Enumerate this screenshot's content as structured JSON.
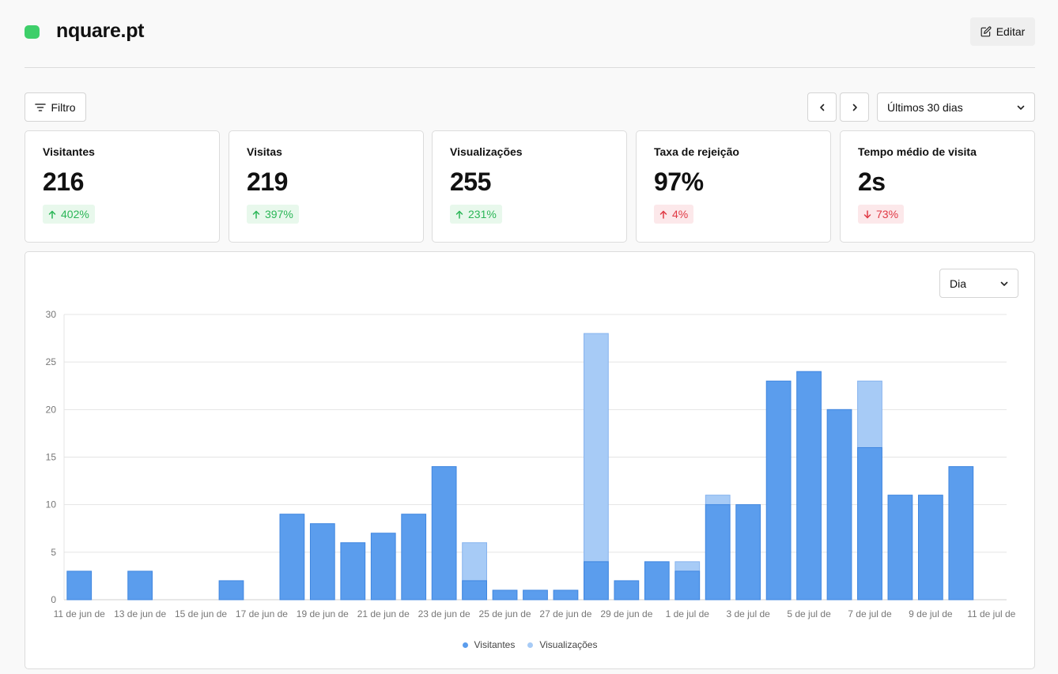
{
  "header": {
    "site": "nquare.pt",
    "edit_label": "Editar"
  },
  "toolbar": {
    "filter_label": "Filtro",
    "range_label": "Últimos 30 dias"
  },
  "stats": [
    {
      "label": "Visitantes",
      "value": "216",
      "delta": "402%",
      "direction": "up",
      "tone": "good"
    },
    {
      "label": "Visitas",
      "value": "219",
      "delta": "397%",
      "direction": "up",
      "tone": "good"
    },
    {
      "label": "Visualizações",
      "value": "255",
      "delta": "231%",
      "direction": "up",
      "tone": "good"
    },
    {
      "label": "Taxa de rejeição",
      "value": "97%",
      "delta": "4%",
      "direction": "up",
      "tone": "bad"
    },
    {
      "label": "Tempo médio de visita",
      "value": "2s",
      "delta": "73%",
      "direction": "down",
      "tone": "bad"
    }
  ],
  "interval_label": "Dia",
  "colors": {
    "visitors": "#5b9ded",
    "views": "#a7cbf6",
    "green": "#3ecf6a"
  },
  "chart_data": {
    "type": "bar",
    "categories": [
      "11 de jun de",
      "12 de jun de",
      "13 de jun de",
      "14 de jun de",
      "15 de jun de",
      "16 de jun de",
      "17 de jun de",
      "18 de jun de",
      "19 de jun de",
      "20 de jun de",
      "21 de jun de",
      "22 de jun de",
      "23 de jun de",
      "24 de jun de",
      "25 de jun de",
      "26 de jun de",
      "27 de jun de",
      "28 de jun de",
      "29 de jun de",
      "30 de jun de",
      "1 de jul de",
      "2 de jul de",
      "3 de jul de",
      "4 de jul de",
      "5 de jul de",
      "6 de jul de",
      "7 de jul de",
      "8 de jul de",
      "9 de jul de",
      "10 de jul de",
      "11 de jul de"
    ],
    "tick_labels": [
      "11 de jun de",
      "13 de jun de",
      "15 de jun de",
      "17 de jun de",
      "19 de jun de",
      "21 de jun de",
      "23 de jun de",
      "25 de jun de",
      "27 de jun de",
      "29 de jun de",
      "1 de jul de",
      "3 de jul de",
      "5 de jul de",
      "7 de jul de",
      "9 de jul de",
      "11 de jul de"
    ],
    "series": [
      {
        "name": "Visitantes",
        "values": [
          3,
          0,
          3,
          0,
          0,
          2,
          0,
          9,
          8,
          6,
          7,
          9,
          14,
          2,
          1,
          1,
          1,
          4,
          2,
          4,
          3,
          10,
          10,
          23,
          24,
          20,
          16,
          11,
          11,
          14,
          0
        ]
      },
      {
        "name": "Visualizações",
        "values": [
          3,
          0,
          3,
          0,
          0,
          2,
          0,
          9,
          8,
          6,
          7,
          9,
          14,
          6,
          1,
          1,
          1,
          28,
          2,
          4,
          4,
          11,
          10,
          23,
          24,
          20,
          23,
          11,
          11,
          14,
          0
        ]
      }
    ],
    "ylim": [
      0,
      30
    ],
    "yticks": [
      0,
      5,
      10,
      15,
      20,
      25,
      30
    ],
    "grid": true,
    "legend": "bottom"
  }
}
